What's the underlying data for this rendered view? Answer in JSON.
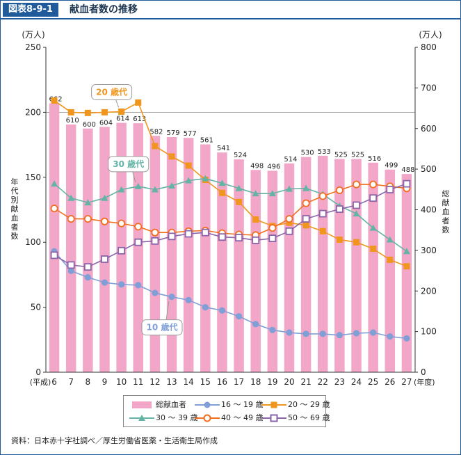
{
  "header": {
    "fig_label": "図表8-9-1",
    "title": "献血者数の推移"
  },
  "source": "資料：日本赤十字社調べ／厚生労働省医薬・生活衛生局作成",
  "colors": {
    "bar": "#f2a6c8",
    "s16_19": "#7f9fd6",
    "s20_29": "#f0961e",
    "s30_39": "#64b4a6",
    "s40_49": "#f06e1e",
    "s50_69": "#8a64a8"
  },
  "legend": {
    "total": "総献血者",
    "s16_19": "16 〜 19 歳",
    "s20_29": "20 〜 29 歳",
    "s30_39": "30 〜 39 歳",
    "s40_49": "40 〜 49 歳",
    "s50_69": "50 〜 69 歳"
  },
  "chart_data": {
    "type": "bar+line",
    "categories": [
      "6",
      "7",
      "8",
      "9",
      "10",
      "11",
      "12",
      "13",
      "14",
      "15",
      "16",
      "17",
      "18",
      "19",
      "20",
      "21",
      "22",
      "23",
      "24",
      "25",
      "26",
      "27"
    ],
    "x_prefix": "(平成)",
    "x_suffix": "(年度)",
    "left_axis": {
      "label": "年代別献血者数",
      "unit": "(万人)",
      "ylim": [
        0,
        250
      ],
      "ticks": [
        "0",
        "50",
        "100",
        "150",
        "200",
        "250"
      ]
    },
    "right_axis": {
      "label": "総献血者数",
      "unit": "(万人)",
      "ylim": [
        0,
        800
      ],
      "ticks": [
        "0",
        "100",
        "200",
        "300",
        "400",
        "500",
        "600",
        "700",
        "800"
      ]
    },
    "bars": {
      "name": "総献血者",
      "axis": "right",
      "values": [
        662,
        610,
        600,
        604,
        614,
        613,
        582,
        579,
        577,
        561,
        541,
        524,
        498,
        496,
        514,
        530,
        533,
        525,
        525,
        516,
        499,
        488
      ],
      "labels": [
        "662",
        "610",
        "600",
        "604",
        "614",
        "613",
        "582",
        "579",
        "577",
        "561",
        "541",
        "524",
        "498",
        "496",
        "514",
        "530",
        "533",
        "525",
        "525",
        "516",
        "499",
        "488"
      ]
    },
    "series": [
      {
        "key": "s16_19",
        "name": "16 〜 19 歳",
        "marker": "circle",
        "values": [
          93,
          78,
          73,
          69,
          67.5,
          67,
          61,
          58,
          55.5,
          50,
          47.5,
          43,
          37,
          32.5,
          30.5,
          29.5,
          29.5,
          28.5,
          30,
          30.5,
          27.5,
          26
        ]
      },
      {
        "key": "s20_29",
        "name": "20 〜 29 歳",
        "marker": "square",
        "values": [
          209,
          200,
          199.5,
          200,
          200.5,
          207.5,
          174,
          166,
          159,
          148,
          138,
          131,
          117.5,
          112.5,
          115,
          113,
          108.5,
          102,
          100,
          95,
          86.5,
          81.5
        ]
      },
      {
        "key": "s30_39",
        "name": "30 〜 39 歳",
        "marker": "triangle",
        "values": [
          145,
          134,
          130.5,
          134,
          140.5,
          143,
          140.5,
          143.5,
          147.5,
          149,
          145.5,
          141.5,
          137.5,
          137.5,
          141,
          141.5,
          137,
          128,
          122,
          111,
          102,
          93
        ]
      },
      {
        "key": "s40_49",
        "name": "40 〜 49 歳",
        "marker": "circle-open",
        "values": [
          126,
          118,
          118,
          116,
          114.5,
          112,
          107.5,
          107.5,
          108.5,
          109,
          107,
          106,
          105.5,
          111,
          118,
          130,
          135.5,
          140,
          144.5,
          144.5,
          143,
          141.5
        ]
      },
      {
        "key": "s50_69",
        "name": "50 〜 69 歳",
        "marker": "square-open",
        "values": [
          90,
          82.5,
          81,
          87,
          93.5,
          100,
          101,
          104.5,
          106.5,
          107.5,
          104,
          103.5,
          101.5,
          103,
          108.5,
          118,
          122,
          125.5,
          128.5,
          134,
          140.5,
          145
        ]
      }
    ],
    "annotations": [
      {
        "text": "20 歳代",
        "series": "s20_29"
      },
      {
        "text": "30 歳代",
        "series": "s30_39"
      },
      {
        "text": "10 歳代",
        "series": "s16_19"
      }
    ]
  }
}
